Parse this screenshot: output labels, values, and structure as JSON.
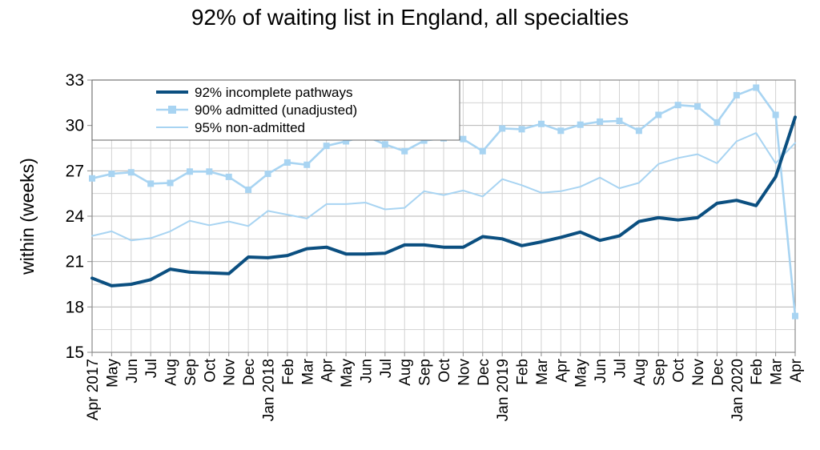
{
  "chart_data": {
    "type": "line",
    "title": "92% of waiting list in England, all specialties",
    "ylabel": "within  (weeks)",
    "xlabel": "",
    "ylim": [
      15,
      33
    ],
    "yticks": [
      15,
      18,
      21,
      24,
      27,
      30,
      33
    ],
    "grid": true,
    "legend_position": "top-left",
    "categories": [
      "Apr 2017",
      "May",
      "Jun",
      "Jul",
      "Aug",
      "Sep",
      "Oct",
      "Nov",
      "Dec",
      "Jan 2018",
      "Feb",
      "Mar",
      "Apr",
      "May",
      "Jun",
      "Jul",
      "Aug",
      "Sep",
      "Oct",
      "Nov",
      "Dec",
      "Jan 2019",
      "Feb",
      "Mar",
      "Apr",
      "May",
      "Jun",
      "Jul",
      "Aug",
      "Sep",
      "Oct",
      "Nov",
      "Dec",
      "Jan 2020",
      "Feb",
      "Mar",
      "Apr"
    ],
    "series": [
      {
        "name": "92% incomplete pathways",
        "color": "#0b4f80",
        "style": "thick-line",
        "values": [
          19.9,
          19.4,
          19.5,
          19.8,
          20.5,
          20.3,
          20.25,
          20.2,
          21.3,
          21.25,
          21.4,
          21.85,
          21.95,
          21.5,
          21.5,
          21.55,
          22.1,
          22.1,
          21.95,
          21.95,
          22.65,
          22.5,
          22.05,
          22.3,
          22.6,
          22.95,
          22.4,
          22.7,
          23.65,
          23.9,
          23.75,
          23.9,
          24.85,
          25.05,
          24.7,
          26.6,
          30.55
        ]
      },
      {
        "name": "90% admitted (unadjusted)",
        "color": "#a8d4f2",
        "style": "line-square-markers",
        "values": [
          26.5,
          26.8,
          26.9,
          26.15,
          26.2,
          26.95,
          26.95,
          26.6,
          25.75,
          26.8,
          27.55,
          27.4,
          28.65,
          28.95,
          29.3,
          28.75,
          28.3,
          29.0,
          29.15,
          29.1,
          28.3,
          29.8,
          29.75,
          30.1,
          29.65,
          30.05,
          30.25,
          30.3,
          29.65,
          30.7,
          31.35,
          31.25,
          30.2,
          32.0,
          32.5,
          30.7,
          17.4
        ]
      },
      {
        "name": "95% non-admitted",
        "color": "#a8d4f2",
        "style": "thin-line",
        "values": [
          22.7,
          23.0,
          22.4,
          22.55,
          23.0,
          23.7,
          23.4,
          23.65,
          23.35,
          24.35,
          24.1,
          23.85,
          24.8,
          24.8,
          24.9,
          24.45,
          24.55,
          25.65,
          25.4,
          25.7,
          25.3,
          26.45,
          26.05,
          25.55,
          25.65,
          25.95,
          26.55,
          25.85,
          26.2,
          27.45,
          27.85,
          28.1,
          27.5,
          28.95,
          29.5,
          27.5,
          28.85
        ]
      }
    ]
  }
}
